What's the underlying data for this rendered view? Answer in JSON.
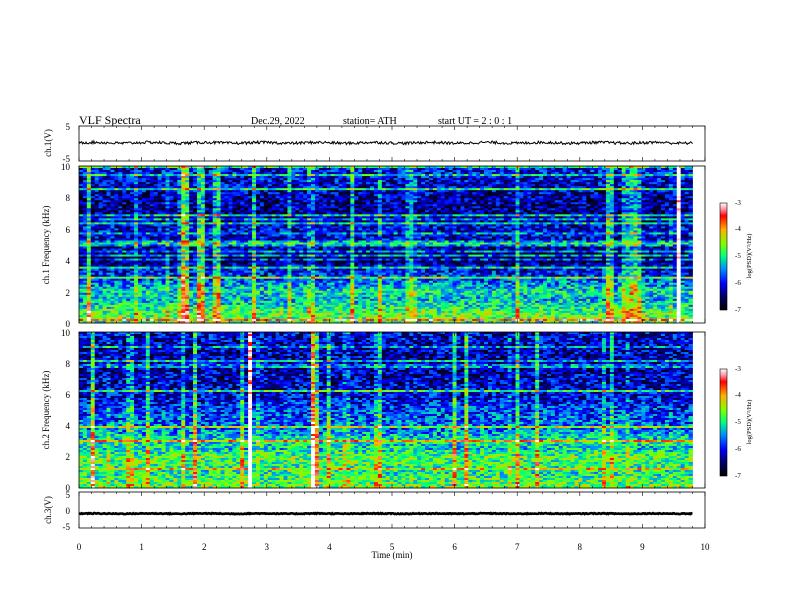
{
  "header": {
    "title": "VLF  Spectra",
    "date": "Dec.29, 2022",
    "station": "station= ATH",
    "start": "start  UT  =   2  : 0   : 1"
  },
  "chart_data": [
    {
      "type": "line",
      "name": "ch1-waveform",
      "ylabel": "ch.1(V)",
      "ylim": [
        -5,
        5
      ],
      "yticks": [
        "5",
        "-5"
      ],
      "xlim": [
        0,
        10
      ],
      "x_end_min": 9.8,
      "baseline_v": 0.2,
      "amplitude_v": 0.8
    },
    {
      "type": "heatmap",
      "name": "ch1-spectrogram",
      "ylabel": "ch.1  Frequency (kHz)",
      "ylim": [
        0,
        10
      ],
      "yticks": [
        "0",
        "2",
        "4",
        "6",
        "8",
        "10"
      ],
      "xlim": [
        0,
        10
      ],
      "x_end_min": 9.8,
      "color_scale": [
        -7,
        -3
      ],
      "colorbar_label": "log(PSD)(V²/Hz)",
      "colorbar_ticks": [
        "-3",
        "-4",
        "-5",
        "-6",
        "-7"
      ],
      "profile_khz": [
        [
          0,
          -4.9
        ],
        [
          0.5,
          -4.6
        ],
        [
          1.0,
          -5.0
        ],
        [
          1.5,
          -5.3
        ],
        [
          2.0,
          -5.1
        ],
        [
          2.5,
          -5.5
        ],
        [
          3.0,
          -5.9
        ],
        [
          3.5,
          -6.1
        ],
        [
          4.0,
          -6.6
        ],
        [
          5.0,
          -6.2
        ],
        [
          6.0,
          -6.1
        ],
        [
          7.0,
          -6.4
        ],
        [
          8.0,
          -6.3
        ],
        [
          9.0,
          -6.1
        ],
        [
          10.0,
          -6.0
        ]
      ]
    },
    {
      "type": "heatmap",
      "name": "ch2-spectrogram",
      "ylabel": "ch.2  Frequency (kHz)",
      "ylim": [
        0,
        10
      ],
      "yticks": [
        "0",
        "2",
        "4",
        "6",
        "8",
        "10"
      ],
      "xlim": [
        0,
        10
      ],
      "x_end_min": 9.8,
      "color_scale": [
        -7,
        -3
      ],
      "colorbar_label": "log(PSD)(V²/Hz)",
      "colorbar_ticks": [
        "-3",
        "-4",
        "-5",
        "-6",
        "-7"
      ],
      "profile_khz": [
        [
          0,
          -4.6
        ],
        [
          0.5,
          -4.8
        ],
        [
          1.0,
          -5.0
        ],
        [
          2.0,
          -4.7
        ],
        [
          2.5,
          -5.2
        ],
        [
          3.0,
          -5.0
        ],
        [
          3.5,
          -5.4
        ],
        [
          4.0,
          -5.6
        ],
        [
          5.0,
          -5.8
        ],
        [
          6.0,
          -6.1
        ],
        [
          7.0,
          -6.2
        ],
        [
          8.0,
          -6.3
        ],
        [
          9.0,
          -6.2
        ],
        [
          10.0,
          -6.1
        ]
      ]
    },
    {
      "type": "line",
      "name": "ch3-waveform",
      "ylabel": "ch.3(V)",
      "ylim": [
        -5,
        5
      ],
      "yticks": [
        "5",
        "0",
        "-5"
      ],
      "xlim": [
        0,
        10
      ],
      "x_end_min": 9.8,
      "baseline_v": -1.0,
      "amplitude_v": 0.25
    }
  ],
  "xaxis": {
    "label": "Time  (min)",
    "ticks": [
      "0",
      "1",
      "2",
      "3",
      "4",
      "5",
      "6",
      "7",
      "8",
      "9",
      "10"
    ]
  },
  "colors": {
    "axis": "#000000",
    "trace": "#000000",
    "background": "#ffffff"
  }
}
